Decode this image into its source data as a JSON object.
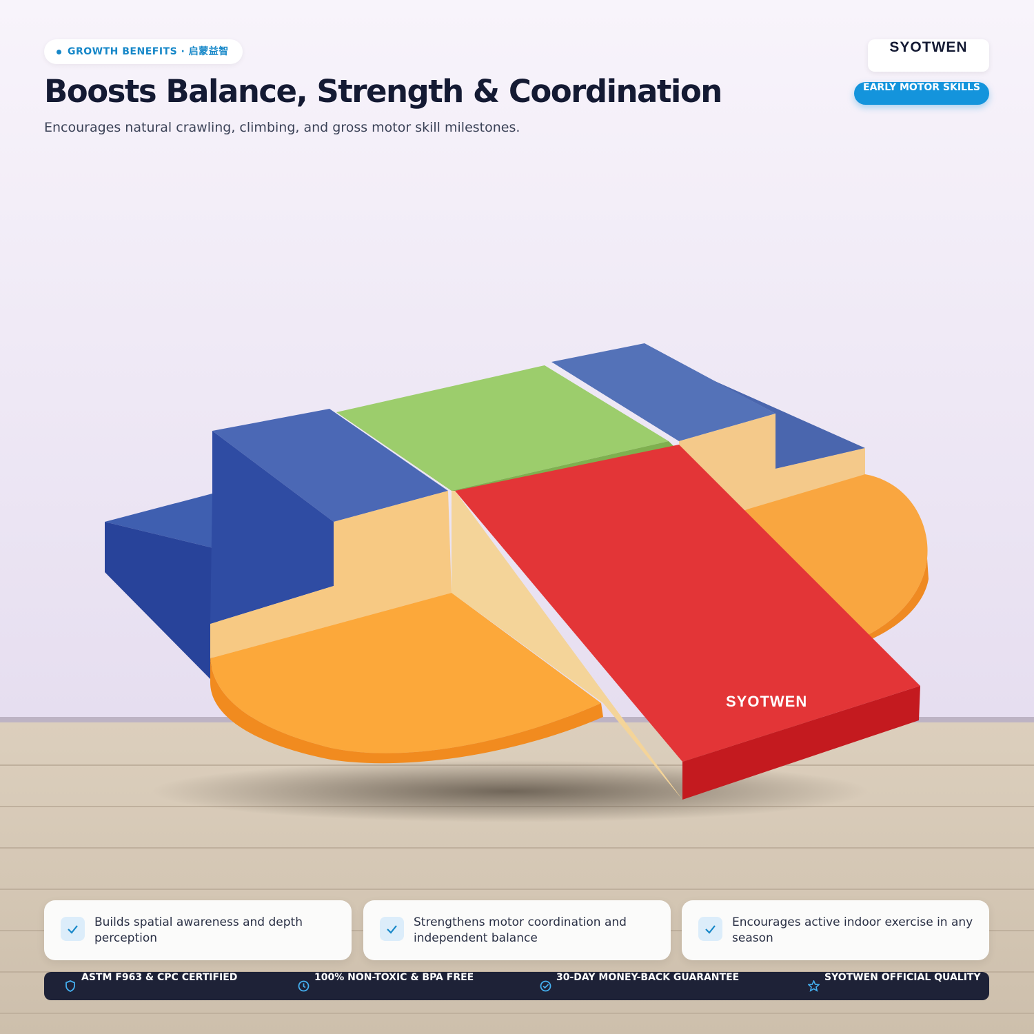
{
  "header": {
    "tag": "GROWTH BENEFITS · 启蒙益智",
    "title": "Boosts Balance, Strength & Coordination",
    "subtitle": "Encourages natural crawling, climbing, and gross motor skill milestones."
  },
  "brand": {
    "name": "SYOTWEN",
    "badge": "EARLY MOTOR SKILLS"
  },
  "product": {
    "label": "SYOTWEN"
  },
  "benefits": [
    "Builds spatial awareness and depth perception",
    "Strengthens motor coordination and independent balance",
    "Encourages active indoor exercise in any season"
  ],
  "trust_bar": [
    "ASTM F963 & CPC CERTIFIED",
    "100% NON-TOXIC & BPA FREE",
    "30-DAY MONEY-BACK GUARANTEE",
    "SYOTWEN OFFICIAL QUALITY"
  ]
}
